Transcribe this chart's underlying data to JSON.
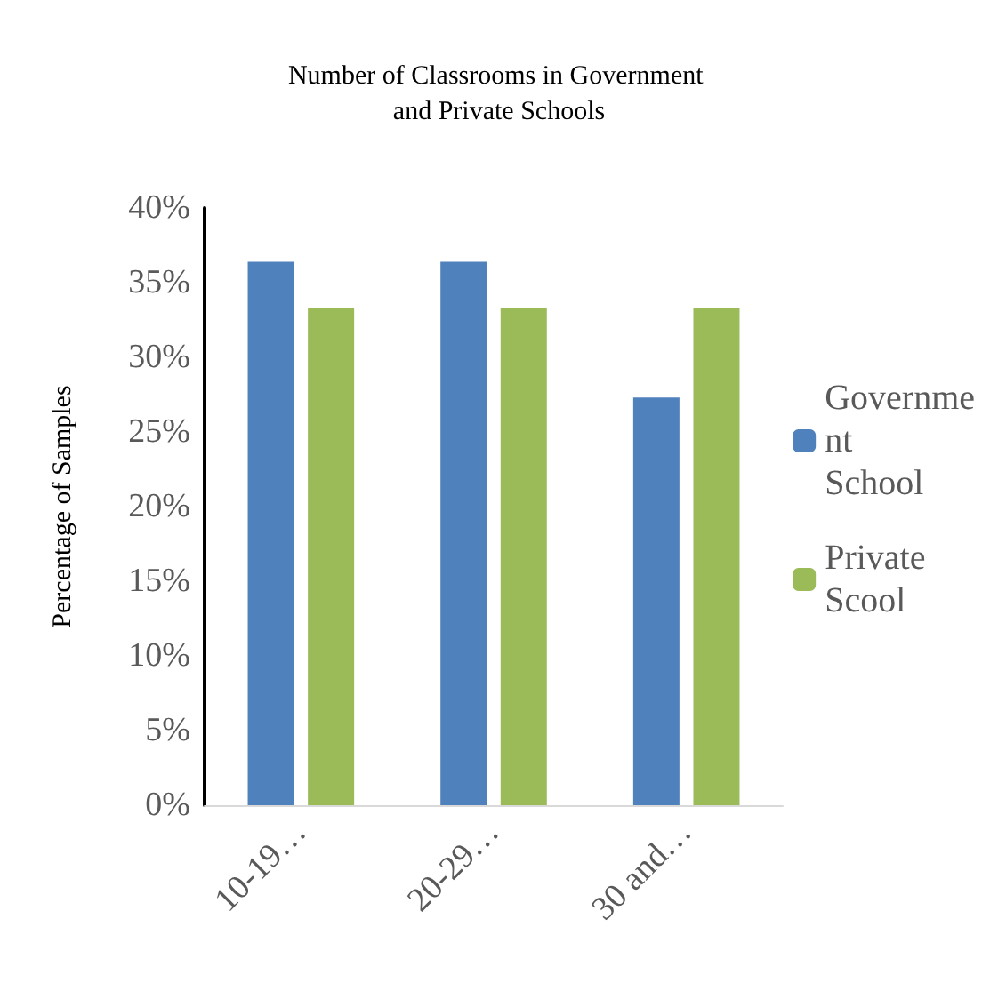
{
  "chart_data": {
    "type": "bar",
    "title": "Number of Classrooms in Government and Private Schools",
    "ylabel": "Percentage of Samples",
    "categories": [
      "10-19…",
      "20-29…",
      "30 and…"
    ],
    "series": [
      {
        "name": "Government School",
        "color": "#4f81bd",
        "values": [
          36.4,
          36.4,
          27.3
        ]
      },
      {
        "name": "Private Scool",
        "color": "#9bbb59",
        "values": [
          33.3,
          33.3,
          33.3
        ]
      }
    ],
    "ylim": [
      0,
      40
    ],
    "yticks": [
      {
        "value": 0,
        "label": "0%"
      },
      {
        "value": 5,
        "label": "5%"
      },
      {
        "value": 10,
        "label": "10%"
      },
      {
        "value": 15,
        "label": "15%"
      },
      {
        "value": 20,
        "label": "20%"
      },
      {
        "value": 25,
        "label": "25%"
      },
      {
        "value": 30,
        "label": "30%"
      },
      {
        "value": 35,
        "label": "35%"
      },
      {
        "value": 40,
        "label": "40%"
      }
    ],
    "grid": false,
    "legend": "right"
  }
}
